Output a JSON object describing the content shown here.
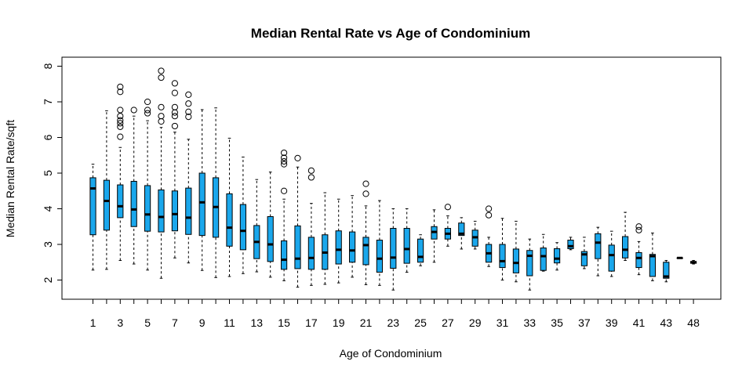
{
  "chart_data": {
    "type": "boxplot",
    "title": "Median Rental Rate vs Age of Condominium",
    "xlabel": "Age of Condominium",
    "ylabel": "Median Rental Rate/sqft",
    "ylim": [
      1.45,
      8.15
    ],
    "y_ticks": [
      2,
      3,
      4,
      5,
      6,
      7,
      8
    ],
    "grid": false,
    "box_color": "#1aa7ec",
    "categories": [
      "1",
      "2",
      "3",
      "4",
      "5",
      "6",
      "7",
      "8",
      "9",
      "10",
      "11",
      "12",
      "13",
      "14",
      "15",
      "16",
      "17",
      "18",
      "19",
      "20",
      "21",
      "22",
      "23",
      "24",
      "25",
      "26",
      "27",
      "28",
      "29",
      "30",
      "31",
      "32",
      "33",
      "34",
      "35",
      "36",
      "37",
      "38",
      "39",
      "40",
      "41",
      "42",
      "43",
      "44",
      "48"
    ],
    "x_tick_labels": [
      "1",
      "3",
      "5",
      "7",
      "9",
      "11",
      "13",
      "15",
      "17",
      "19",
      "21",
      "23",
      "25",
      "27",
      "29",
      "31",
      "33",
      "35",
      "37",
      "39",
      "41",
      "43",
      "48"
    ],
    "boxes": [
      {
        "age": "1",
        "whisker_low": 2.28,
        "q1": 3.27,
        "median": 4.57,
        "q3": 4.87,
        "whisker_high": 5.25,
        "outliers": []
      },
      {
        "age": "2",
        "whisker_low": 2.3,
        "q1": 3.4,
        "median": 4.22,
        "q3": 4.8,
        "whisker_high": 6.75,
        "outliers": []
      },
      {
        "age": "3",
        "whisker_low": 2.55,
        "q1": 3.75,
        "median": 4.07,
        "q3": 4.67,
        "whisker_high": 5.72,
        "outliers": [
          6.02,
          6.3,
          6.4,
          6.48,
          6.6,
          6.77,
          7.28,
          7.42
        ]
      },
      {
        "age": "4",
        "whisker_low": 2.45,
        "q1": 3.5,
        "median": 3.98,
        "q3": 4.77,
        "whisker_high": 6.6,
        "outliers": [
          6.77
        ]
      },
      {
        "age": "5",
        "whisker_low": 2.28,
        "q1": 3.37,
        "median": 3.84,
        "q3": 4.65,
        "whisker_high": 6.47,
        "outliers": [
          6.68,
          6.77,
          7.0
        ]
      },
      {
        "age": "6",
        "whisker_low": 2.05,
        "q1": 3.35,
        "median": 3.77,
        "q3": 4.53,
        "whisker_high": 6.28,
        "outliers": [
          6.45,
          6.6,
          6.85,
          7.68,
          7.87
        ]
      },
      {
        "age": "7",
        "whisker_low": 2.62,
        "q1": 3.38,
        "median": 3.85,
        "q3": 4.5,
        "whisker_high": 6.15,
        "outliers": [
          6.32,
          6.6,
          6.7,
          6.85,
          7.25,
          7.52
        ]
      },
      {
        "age": "8",
        "whisker_low": 2.48,
        "q1": 3.28,
        "median": 3.75,
        "q3": 4.58,
        "whisker_high": 5.95,
        "outliers": [
          6.58,
          6.72,
          6.95,
          7.2
        ]
      },
      {
        "age": "9",
        "whisker_low": 2.27,
        "q1": 3.25,
        "median": 4.18,
        "q3": 5.0,
        "whisker_high": 6.78,
        "outliers": []
      },
      {
        "age": "10",
        "whisker_low": 2.07,
        "q1": 3.2,
        "median": 4.05,
        "q3": 4.87,
        "whisker_high": 6.83,
        "outliers": []
      },
      {
        "age": "11",
        "whisker_low": 2.1,
        "q1": 2.95,
        "median": 3.47,
        "q3": 4.42,
        "whisker_high": 5.98,
        "outliers": []
      },
      {
        "age": "12",
        "whisker_low": 2.18,
        "q1": 2.85,
        "median": 3.38,
        "q3": 4.12,
        "whisker_high": 5.45,
        "outliers": []
      },
      {
        "age": "13",
        "whisker_low": 2.23,
        "q1": 2.6,
        "median": 3.07,
        "q3": 3.53,
        "whisker_high": 4.82,
        "outliers": []
      },
      {
        "age": "14",
        "whisker_low": 2.08,
        "q1": 2.52,
        "median": 3.0,
        "q3": 3.78,
        "whisker_high": 5.03,
        "outliers": []
      },
      {
        "age": "15",
        "whisker_low": 1.98,
        "q1": 2.3,
        "median": 2.57,
        "q3": 3.1,
        "whisker_high": 4.27,
        "outliers": [
          4.5,
          5.25,
          5.33,
          5.43,
          5.57
        ]
      },
      {
        "age": "16",
        "whisker_low": 1.8,
        "q1": 2.32,
        "median": 2.6,
        "q3": 3.52,
        "whisker_high": 5.17,
        "outliers": [
          5.42
        ]
      },
      {
        "age": "17",
        "whisker_low": 1.85,
        "q1": 2.3,
        "median": 2.62,
        "q3": 3.2,
        "whisker_high": 4.15,
        "outliers": [
          4.88,
          5.07
        ]
      },
      {
        "age": "18",
        "whisker_low": 1.88,
        "q1": 2.3,
        "median": 2.77,
        "q3": 3.27,
        "whisker_high": 4.45,
        "outliers": []
      },
      {
        "age": "19",
        "whisker_low": 1.92,
        "q1": 2.45,
        "median": 2.85,
        "q3": 3.38,
        "whisker_high": 4.27,
        "outliers": []
      },
      {
        "age": "20",
        "whisker_low": 2.08,
        "q1": 2.5,
        "median": 2.83,
        "q3": 3.35,
        "whisker_high": 4.37,
        "outliers": []
      },
      {
        "age": "21",
        "whisker_low": 1.87,
        "q1": 2.43,
        "median": 2.98,
        "q3": 3.2,
        "whisker_high": 4.08,
        "outliers": [
          4.42,
          4.7
        ]
      },
      {
        "age": "22",
        "whisker_low": 1.85,
        "q1": 2.22,
        "median": 2.6,
        "q3": 3.12,
        "whisker_high": 4.23,
        "outliers": []
      },
      {
        "age": "23",
        "whisker_low": 1.72,
        "q1": 2.33,
        "median": 2.63,
        "q3": 3.45,
        "whisker_high": 4.0,
        "outliers": []
      },
      {
        "age": "24",
        "whisker_low": 2.22,
        "q1": 2.47,
        "median": 2.87,
        "q3": 3.45,
        "whisker_high": 4.0,
        "outliers": []
      },
      {
        "age": "25",
        "whisker_low": 2.4,
        "q1": 2.5,
        "median": 2.65,
        "q3": 3.15,
        "whisker_high": 3.27,
        "outliers": []
      },
      {
        "age": "26",
        "whisker_low": 2.5,
        "q1": 3.15,
        "median": 3.35,
        "q3": 3.5,
        "whisker_high": 3.97,
        "outliers": []
      },
      {
        "age": "27",
        "whisker_low": 2.95,
        "q1": 3.15,
        "median": 3.3,
        "q3": 3.45,
        "whisker_high": 3.8,
        "outliers": [
          4.05
        ]
      },
      {
        "age": "28",
        "whisker_low": 2.87,
        "q1": 3.25,
        "median": 3.3,
        "q3": 3.6,
        "whisker_high": 3.75,
        "outliers": []
      },
      {
        "age": "29",
        "whisker_low": 2.87,
        "q1": 2.95,
        "median": 3.2,
        "q3": 3.4,
        "whisker_high": 3.65,
        "outliers": []
      },
      {
        "age": "30",
        "whisker_low": 2.38,
        "q1": 2.5,
        "median": 2.75,
        "q3": 3.0,
        "whisker_high": 3.2,
        "outliers": [
          3.82,
          4.0
        ]
      },
      {
        "age": "31",
        "whisker_low": 2.0,
        "q1": 2.35,
        "median": 2.53,
        "q3": 3.0,
        "whisker_high": 3.73,
        "outliers": []
      },
      {
        "age": "32",
        "whisker_low": 1.95,
        "q1": 2.2,
        "median": 2.48,
        "q3": 2.87,
        "whisker_high": 3.65,
        "outliers": []
      },
      {
        "age": "33",
        "whisker_low": 1.72,
        "q1": 2.12,
        "median": 2.68,
        "q3": 2.83,
        "whisker_high": 3.15,
        "outliers": []
      },
      {
        "age": "34",
        "whisker_low": 2.25,
        "q1": 2.27,
        "median": 2.67,
        "q3": 2.9,
        "whisker_high": 3.28,
        "outliers": []
      },
      {
        "age": "35",
        "whisker_low": 2.28,
        "q1": 2.48,
        "median": 2.6,
        "q3": 2.88,
        "whisker_high": 3.05,
        "outliers": []
      },
      {
        "age": "36",
        "whisker_low": 2.85,
        "q1": 2.88,
        "median": 2.95,
        "q3": 3.12,
        "whisker_high": 3.2,
        "outliers": []
      },
      {
        "age": "37",
        "whisker_low": 2.32,
        "q1": 2.4,
        "median": 2.72,
        "q3": 2.8,
        "whisker_high": 3.2,
        "outliers": []
      },
      {
        "age": "38",
        "whisker_low": 2.12,
        "q1": 2.6,
        "median": 3.05,
        "q3": 3.3,
        "whisker_high": 3.48,
        "outliers": []
      },
      {
        "age": "39",
        "whisker_low": 2.1,
        "q1": 2.25,
        "median": 2.7,
        "q3": 2.98,
        "whisker_high": 3.37,
        "outliers": []
      },
      {
        "age": "40",
        "whisker_low": 2.55,
        "q1": 2.62,
        "median": 2.85,
        "q3": 3.22,
        "whisker_high": 3.9,
        "outliers": []
      },
      {
        "age": "41",
        "whisker_low": 2.15,
        "q1": 2.35,
        "median": 2.62,
        "q3": 2.77,
        "whisker_high": 3.08,
        "outliers": [
          3.4,
          3.5
        ]
      },
      {
        "age": "42",
        "whisker_low": 1.98,
        "q1": 2.1,
        "median": 2.67,
        "q3": 2.72,
        "whisker_high": 3.32,
        "outliers": []
      },
      {
        "age": "43",
        "whisker_low": 1.95,
        "q1": 2.05,
        "median": 2.1,
        "q3": 2.5,
        "whisker_high": 2.55,
        "outliers": []
      },
      {
        "age": "44",
        "whisker_low": 2.62,
        "q1": 2.62,
        "median": 2.62,
        "q3": 2.62,
        "whisker_high": 2.62,
        "outliers": []
      },
      {
        "age": "48",
        "whisker_low": 2.45,
        "q1": 2.47,
        "median": 2.5,
        "q3": 2.52,
        "whisker_high": 2.55,
        "outliers": []
      }
    ]
  }
}
